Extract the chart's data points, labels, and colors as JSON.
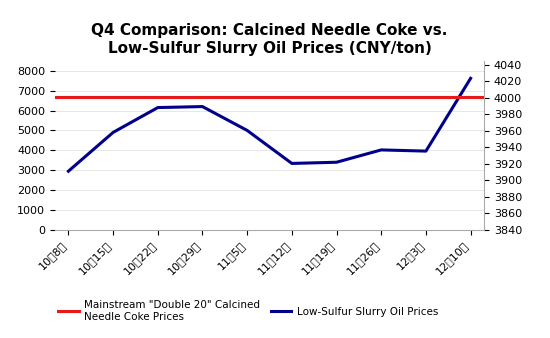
{
  "title": "Q4 Comparison: Calcined Needle Coke vs.\nLow-Sulfur Slurry Oil Prices (CNY/ton)",
  "x_labels": [
    "10朎8日",
    "10朎15日",
    "10朎22日",
    "10朎29日",
    "11朎5日",
    "11朎12日",
    "11朎19日",
    "11朎26日",
    "12朎3日",
    "12朎10日"
  ],
  "slurry_oil_prices": [
    2950,
    4900,
    6150,
    6200,
    5000,
    3340,
    3400,
    4020,
    3960,
    7620
  ],
  "calcined_coke_price": 6700,
  "left_ylim": [
    0,
    8500
  ],
  "left_yticks": [
    0,
    1000,
    2000,
    3000,
    4000,
    5000,
    6000,
    7000,
    8000
  ],
  "right_ylim": [
    3840,
    4045
  ],
  "right_yticks": [
    3840,
    3860,
    3880,
    3900,
    3920,
    3940,
    3960,
    3980,
    4000,
    4020,
    4040
  ],
  "slurry_color": "#00008B",
  "coke_color": "#E8191A",
  "legend_label_coke": "Mainstream \"Double 20\" Calcined\nNeedle Coke Prices",
  "legend_label_slurry": "Low-Sulfur Slurry Oil Prices",
  "title_fontsize": 11,
  "tick_fontsize": 8,
  "legend_fontsize": 7.5,
  "background_color": "#FFFFFF"
}
